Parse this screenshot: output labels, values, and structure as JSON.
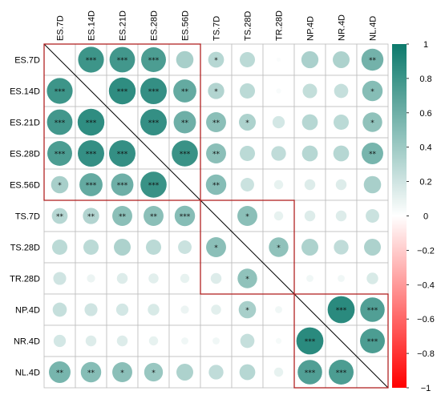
{
  "chart_data": {
    "type": "heatmap",
    "variables": [
      "ES.7D",
      "ES.14D",
      "ES.21D",
      "ES.28D",
      "ES.56D",
      "TS.7D",
      "TS.28D",
      "TR.28D",
      "NP.4D",
      "NR.4D",
      "NL.4D"
    ],
    "matrix": [
      [
        1.0,
        0.8,
        0.78,
        0.74,
        0.36,
        0.3,
        0.28,
        0.02,
        0.35,
        0.34,
        0.58
      ],
      [
        0.8,
        1.0,
        0.86,
        0.84,
        0.64,
        0.32,
        0.28,
        0.03,
        0.25,
        0.24,
        0.5
      ],
      [
        0.78,
        0.86,
        1.0,
        0.84,
        0.6,
        0.48,
        0.34,
        0.18,
        0.3,
        0.28,
        0.46
      ],
      [
        0.74,
        0.84,
        0.84,
        1.0,
        0.82,
        0.48,
        0.28,
        0.26,
        0.3,
        0.3,
        0.56
      ],
      [
        0.36,
        0.64,
        0.6,
        0.82,
        1.0,
        0.5,
        0.22,
        0.1,
        0.14,
        0.14,
        0.36
      ],
      [
        0.3,
        0.32,
        0.48,
        0.48,
        0.5,
        1.0,
        0.48,
        0.1,
        0.14,
        0.14,
        0.22
      ],
      [
        0.28,
        0.28,
        0.34,
        0.28,
        0.22,
        0.48,
        1.0,
        0.46,
        0.34,
        0.26,
        0.34
      ],
      [
        0.2,
        0.08,
        0.14,
        0.12,
        0.1,
        0.14,
        0.46,
        1.0,
        0.06,
        0.06,
        0.16
      ],
      [
        0.24,
        0.2,
        0.18,
        0.16,
        0.08,
        0.12,
        0.36,
        0.06,
        1.0,
        0.88,
        0.72
      ],
      [
        0.18,
        0.14,
        0.14,
        0.1,
        0.06,
        0.06,
        0.24,
        0.04,
        0.88,
        1.0,
        0.74
      ],
      [
        0.56,
        0.5,
        0.48,
        0.42,
        0.34,
        0.26,
        0.3,
        0.1,
        0.72,
        0.74,
        1.0
      ]
    ],
    "significance": [
      [
        "",
        "***",
        "***",
        "***",
        "",
        "*",
        "",
        "",
        "",
        "",
        "**"
      ],
      [
        "***",
        "",
        "***",
        "***",
        "**",
        "*",
        "",
        "",
        "",
        "",
        "*"
      ],
      [
        "***",
        "***",
        "",
        "***",
        "**",
        "**",
        "*",
        "",
        "",
        "",
        "*"
      ],
      [
        "***",
        "***",
        "***",
        "",
        "***",
        "**",
        "",
        "",
        "",
        "",
        "**"
      ],
      [
        "*",
        "***",
        "***",
        "***",
        "",
        "**",
        "",
        "",
        "",
        "",
        ""
      ],
      [
        "**",
        "**",
        "**",
        "**",
        "***",
        "",
        "*",
        "",
        "",
        "",
        ""
      ],
      [
        "",
        "",
        "",
        "",
        "",
        "*",
        "",
        "*",
        "",
        "",
        ""
      ],
      [
        "",
        "",
        "",
        "",
        "",
        "",
        "*",
        "",
        "",
        "",
        ""
      ],
      [
        "",
        "",
        "",
        "",
        "",
        "",
        "*",
        "",
        "",
        "***",
        "***"
      ],
      [
        "",
        "",
        "",
        "",
        "",
        "",
        "",
        "",
        "***",
        "",
        "***"
      ],
      [
        "**",
        "**",
        "*",
        "*",
        "",
        "",
        "",
        "",
        "***",
        "***",
        ""
      ]
    ],
    "clusters": [
      [
        0,
        4
      ],
      [
        5,
        7
      ],
      [
        8,
        10
      ]
    ],
    "colorbar": {
      "range": [
        -1,
        1
      ],
      "ticks": [
        "1",
        "0.8",
        "0.6",
        "0.4",
        "0.2",
        "0",
        "−0.2",
        "−0.4",
        "−0.6",
        "−0.8",
        "−1"
      ],
      "tick_values": [
        1,
        0.8,
        0.6,
        0.4,
        0.2,
        0,
        -0.2,
        -0.4,
        -0.6,
        -0.8,
        -1
      ]
    },
    "colors": {
      "positive": "#0d7a6c",
      "negative": "#ff0000",
      "neutral": "#ffffff",
      "grid": "#bdbdbd",
      "cluster_outline": "#b22222"
    }
  }
}
